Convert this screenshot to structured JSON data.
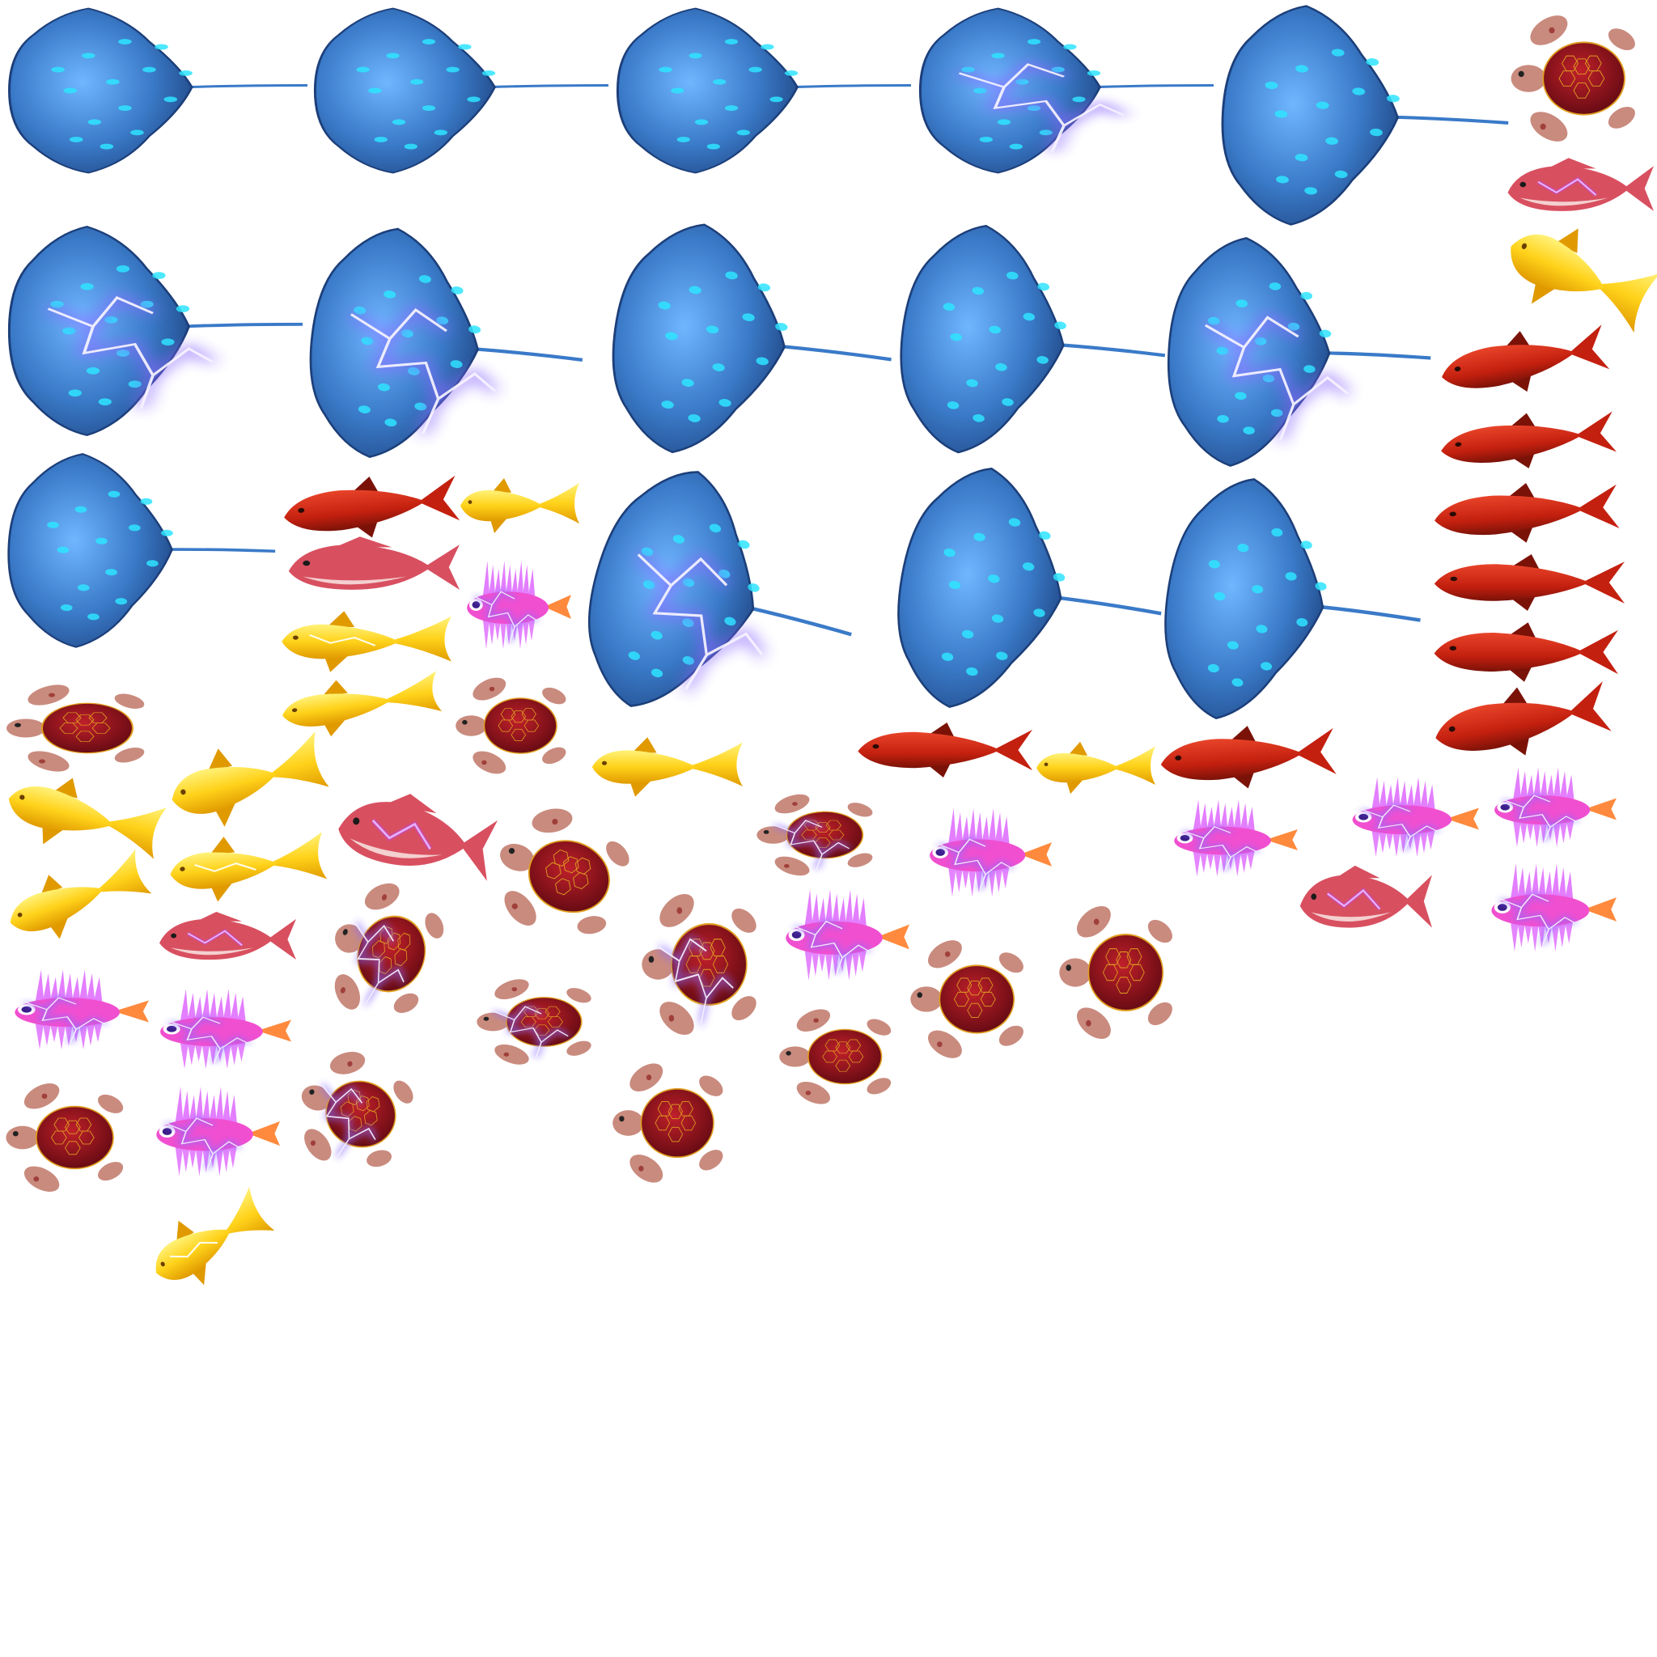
{
  "sheet": {
    "background": "#ffffff",
    "kind": "sprite-atlas"
  },
  "palette": {
    "ray_dark": "#1c3f7a",
    "ray_mid": "#3a7ac8",
    "ray_light": "#6fb6ff",
    "ray_spot": "#2ee4ff",
    "turtle_shell": "#8a1018",
    "turtle_rim": "#e0a020",
    "turtle_skin": "#c98b7e",
    "turtle_spot": "#a0403a",
    "redfish_body": "#c4200f",
    "redfish_dark": "#7a1208",
    "gold_body": "#ffd21a",
    "gold_dark": "#e09a00",
    "lion_body": "#f04fd0",
    "lion_fin": "#e070ff",
    "lion_tail": "#ff8a3d",
    "snapper_body": "#d85060",
    "snapper_belly": "#f4d0d0",
    "lightning": "#f4f0ff",
    "lightning_glow": "#8c6bff"
  },
  "sprite_types": {
    "stingray": "stingray-icon",
    "turtle": "sea-turtle-icon",
    "redfish": "red-fish-icon",
    "goldfish": "golden-koi-icon",
    "lionfish": "lionfish-icon",
    "snapper": "red-snapper-icon"
  }
}
